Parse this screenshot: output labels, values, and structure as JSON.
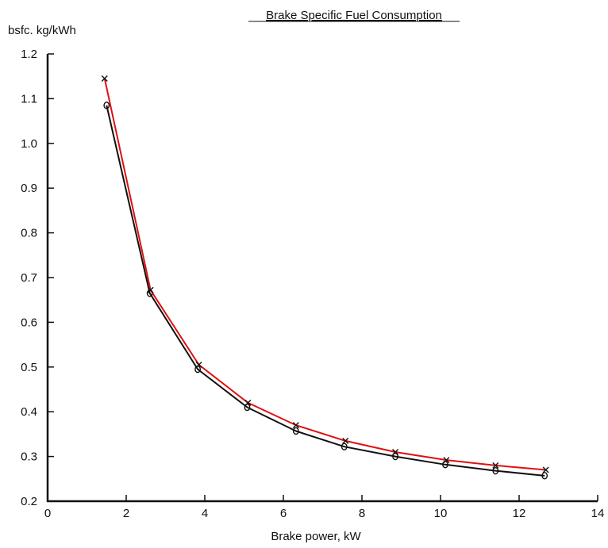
{
  "chart_data": {
    "type": "line",
    "title": "Brake Specific Fuel Consumption",
    "xlabel": "Brake power, kW",
    "ylabel": "bsfc. kg/kWh",
    "xlim": [
      0,
      14
    ],
    "ylim": [
      0.2,
      1.2
    ],
    "xticks": [
      "0",
      "2",
      "4",
      "6",
      "8",
      "10",
      "12",
      "14"
    ],
    "yticks": [
      "0.2",
      "0.3",
      "0.4",
      "0.5",
      "0.6",
      "0.7",
      "0.8",
      "0.9",
      "1.0",
      "1.1",
      "1.2"
    ],
    "grid": false,
    "series": [
      {
        "color": "#e01010",
        "marker": "x",
        "x": [
          1.45,
          2.62,
          3.85,
          5.1,
          6.32,
          7.58,
          8.85,
          10.15,
          11.4,
          12.68
        ],
        "y": [
          1.145,
          0.672,
          0.505,
          0.42,
          0.37,
          0.335,
          0.31,
          0.292,
          0.28,
          0.27
        ]
      },
      {
        "color": "#111111",
        "marker": "o",
        "x": [
          1.5,
          2.6,
          3.82,
          5.08,
          6.32,
          7.55,
          8.85,
          10.12,
          11.4,
          12.65
        ],
        "y": [
          1.085,
          0.665,
          0.495,
          0.41,
          0.357,
          0.322,
          0.3,
          0.282,
          0.268,
          0.257
        ]
      }
    ]
  }
}
